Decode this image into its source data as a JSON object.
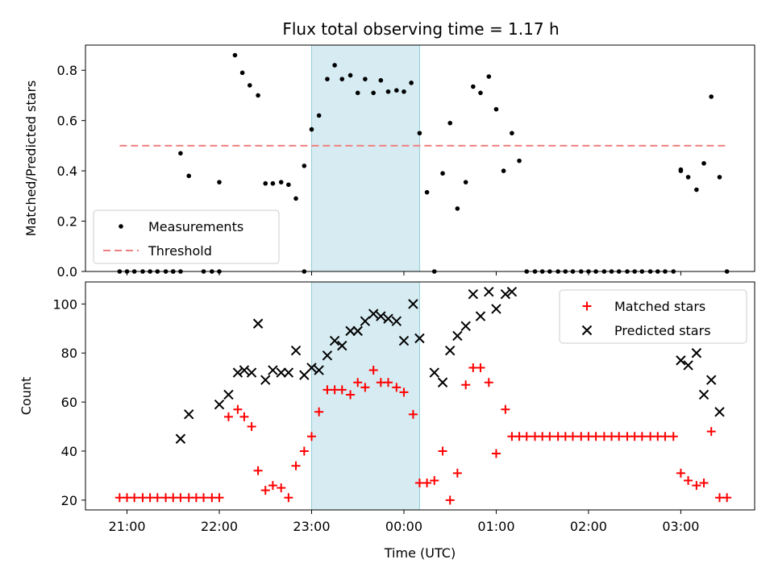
{
  "title": "Flux total observing time = 1.17 h",
  "chart_data": [
    {
      "type": "scatter",
      "ylabel": "Matched/Predicted stars",
      "xlim": [
        20.55,
        27.8
      ],
      "ylim": [
        0,
        0.9
      ],
      "yticks": [
        0.0,
        0.2,
        0.4,
        0.6,
        0.8
      ],
      "yticklabels": [
        "0.0",
        "0.2",
        "0.4",
        "0.6",
        "0.8"
      ],
      "legend_position": "lower-left",
      "highlight_span": [
        23.0,
        24.17
      ],
      "series": [
        {
          "name": "Measurements",
          "marker": "dot",
          "color": "#000000",
          "x": [
            20.92,
            21.0,
            21.08,
            21.17,
            21.25,
            21.33,
            21.42,
            21.5,
            21.58,
            21.67,
            21.83,
            21.92,
            22.0,
            22.17,
            22.25,
            22.33,
            22.42,
            22.5,
            22.58,
            22.67,
            22.75,
            22.83,
            22.92,
            23.0,
            23.08,
            23.17,
            23.25,
            23.33,
            23.42,
            23.5,
            23.58,
            23.67,
            23.75,
            23.83,
            23.92,
            24.0,
            24.08,
            24.17,
            24.25,
            24.33,
            24.42,
            24.5,
            24.58,
            24.67,
            24.75,
            24.83,
            24.92,
            25.0,
            25.08,
            25.17,
            25.25,
            25.33,
            25.42,
            25.5,
            25.58,
            25.67,
            25.75,
            25.83,
            25.92,
            26.0,
            26.08,
            26.17,
            26.25,
            26.33,
            26.42,
            26.5,
            26.58,
            26.67,
            26.75,
            26.83,
            26.92,
            27.0,
            27.08,
            27.17,
            27.25,
            27.33,
            27.42,
            27.5,
            21.5,
            21.58,
            22.0,
            22.92,
            27.0
          ],
          "y": [
            0,
            0,
            0,
            0,
            0,
            0,
            0,
            0,
            0.47,
            0.38,
            0,
            0,
            0,
            0.86,
            0.79,
            0.74,
            0.7,
            0.35,
            0.35,
            0.355,
            0.345,
            0.29,
            0.42,
            0.565,
            0.62,
            0.765,
            0.82,
            0.765,
            0.78,
            0.71,
            0.765,
            0.71,
            0.76,
            0.715,
            0.72,
            0.715,
            0.75,
            0.55,
            0.315,
            0,
            0.39,
            0.59,
            0.25,
            0.355,
            0.735,
            0.71,
            0.775,
            0.645,
            0.4,
            0.55,
            0.44,
            0,
            0,
            0,
            0,
            0,
            0,
            0,
            0,
            0,
            0,
            0,
            0,
            0,
            0,
            0,
            0,
            0,
            0,
            0,
            0,
            0.405,
            0.375,
            0.325,
            0.43,
            0.695,
            0.375,
            0,
            0,
            0,
            0.355,
            0,
            0.4
          ]
        },
        {
          "name": "Threshold",
          "marker": "dashed-line",
          "color": "#f08080",
          "x": [
            20.92,
            27.5
          ],
          "y": [
            0.5,
            0.5
          ]
        }
      ]
    },
    {
      "type": "scatter",
      "ylabel": "Count",
      "xlabel": "Time (UTC)",
      "xlim": [
        20.55,
        27.8
      ],
      "ylim": [
        16,
        109
      ],
      "yticks": [
        20,
        40,
        60,
        80,
        100
      ],
      "xticks": [
        21,
        22,
        23,
        24,
        25,
        26,
        27
      ],
      "xticklabels": [
        "21:00",
        "22:00",
        "23:00",
        "00:00",
        "01:00",
        "02:00",
        "03:00"
      ],
      "legend_position": "top-right",
      "highlight_span": [
        23.0,
        24.17
      ],
      "series": [
        {
          "name": "Matched stars",
          "marker": "plus",
          "color": "#ff0000",
          "x": [
            20.92,
            21.0,
            21.08,
            21.17,
            21.25,
            21.33,
            21.42,
            21.5,
            21.58,
            21.67,
            21.75,
            21.83,
            21.92,
            22.0,
            22.1,
            22.2,
            22.27,
            22.35,
            22.42,
            22.5,
            22.58,
            22.67,
            22.75,
            22.83,
            22.92,
            23.0,
            23.08,
            23.17,
            23.25,
            23.33,
            23.42,
            23.5,
            23.58,
            23.67,
            23.75,
            23.83,
            23.92,
            24.0,
            24.1,
            24.17,
            24.25,
            24.33,
            24.42,
            24.5,
            24.58,
            24.67,
            24.75,
            24.83,
            24.92,
            25.0,
            25.1,
            25.17,
            25.25,
            25.33,
            25.42,
            25.5,
            25.58,
            25.67,
            25.75,
            25.83,
            25.92,
            26.0,
            26.08,
            26.17,
            26.25,
            26.33,
            26.42,
            26.5,
            26.58,
            26.67,
            26.75,
            26.83,
            26.92,
            27.0,
            27.08,
            27.17,
            27.25,
            27.33,
            27.42,
            27.5
          ],
          "y": [
            21,
            21,
            21,
            21,
            21,
            21,
            21,
            21,
            21,
            21,
            21,
            21,
            21,
            21,
            54,
            57,
            54,
            50,
            32,
            24,
            26,
            25,
            21,
            34,
            40,
            46,
            56,
            65,
            65,
            65,
            63,
            68,
            66,
            73,
            68,
            68,
            66,
            64,
            55,
            27,
            27,
            28,
            40,
            20,
            31,
            67,
            74,
            74,
            68,
            39,
            57,
            46,
            46,
            46,
            46,
            46,
            46,
            46,
            46,
            46,
            46,
            46,
            46,
            46,
            46,
            46,
            46,
            46,
            46,
            46,
            46,
            46,
            46,
            31,
            28,
            26,
            27,
            48,
            21,
            21
          ]
        },
        {
          "name": "Predicted stars",
          "marker": "x",
          "color": "#000000",
          "x": [
            21.58,
            21.67,
            22.0,
            22.1,
            22.2,
            22.27,
            22.35,
            22.42,
            22.5,
            22.58,
            22.67,
            22.75,
            22.83,
            22.92,
            23.0,
            23.08,
            23.17,
            23.25,
            23.33,
            23.42,
            23.5,
            23.58,
            23.67,
            23.75,
            23.83,
            23.92,
            24.0,
            24.1,
            24.17,
            24.33,
            24.42,
            24.5,
            24.58,
            24.67,
            24.75,
            24.83,
            24.92,
            25.0,
            25.1,
            25.17,
            27.0,
            27.08,
            27.17,
            27.25,
            27.33,
            27.42
          ],
          "y": [
            45,
            55,
            59,
            63,
            72,
            73,
            72,
            92,
            69,
            73,
            72,
            72,
            81,
            71,
            74,
            73,
            79,
            85,
            83,
            89,
            89,
            93,
            96,
            95,
            94,
            93,
            85,
            100,
            86,
            72,
            68,
            81,
            87,
            91,
            104,
            95,
            105,
            98,
            104,
            105,
            77,
            75,
            80,
            63,
            69,
            56
          ]
        }
      ]
    }
  ]
}
